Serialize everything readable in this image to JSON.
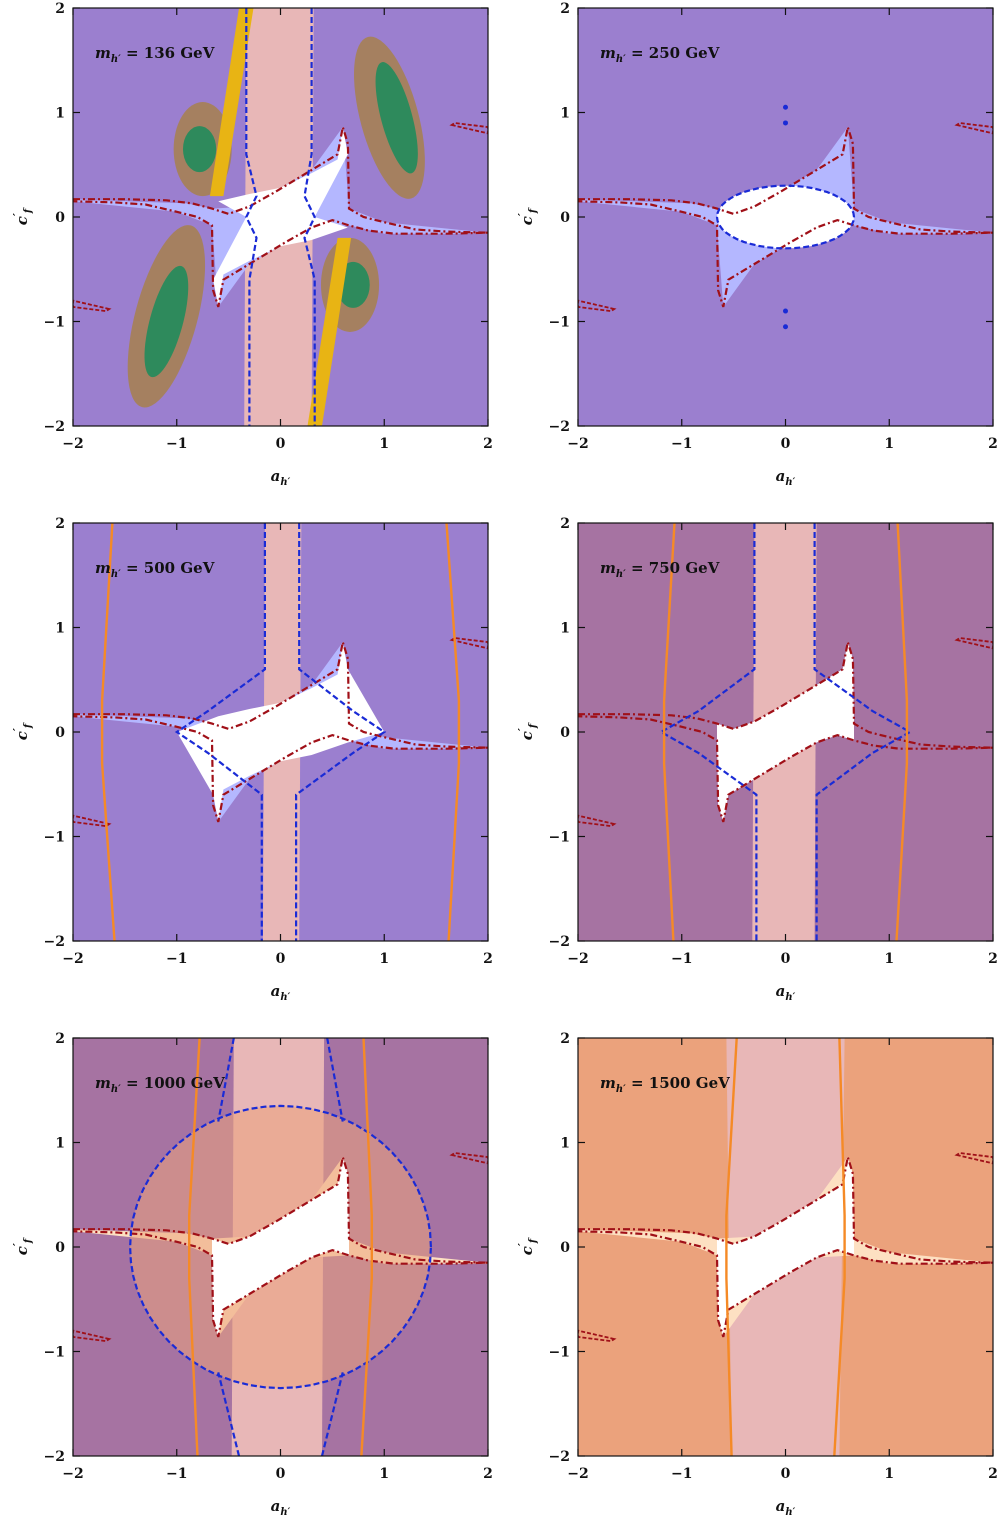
{
  "colors": {
    "violet": "#9b7fcf",
    "mauve": "#a673a2",
    "lightblue": "#b4b7ff",
    "pink": "#e8b7b7",
    "peach": "#fde0c2",
    "orange_region": "#eba27c",
    "brown": "#a58060",
    "green": "#2e8a5c",
    "yellow": "#e8b414",
    "blue_contour": "#1a2bd6",
    "red_contour": "#a01018",
    "orange_contour": "#f58a26"
  },
  "chart_data": [
    {
      "type": "contour",
      "panel": "m136",
      "mass_label": "m",
      "mass_sub": "h′",
      "mass_value": " = 136 GeV",
      "xlabel": "a",
      "xlabel_sub": "h′",
      "ylabel": "c",
      "ylabel_sub": "f",
      "ylabel_sup": "′",
      "xlim": [
        -2,
        2
      ],
      "ylim": [
        -2,
        2
      ],
      "xticks": [
        "−2",
        "−1",
        "0",
        "1",
        "2"
      ],
      "yticks": [
        "−2",
        "−1",
        "0",
        "1",
        "2"
      ],
      "background": "violet",
      "blue_band": [
        0.33,
        0.3
      ],
      "orange_lines": null
    },
    {
      "type": "contour",
      "panel": "m250",
      "mass_label": "m",
      "mass_sub": "h′",
      "mass_value": " = 250 GeV",
      "xlabel": "a",
      "xlabel_sub": "h′",
      "ylabel": "c",
      "ylabel_sub": "f",
      "ylabel_sup": "′",
      "xlim": [
        -2,
        2
      ],
      "ylim": [
        -2,
        2
      ],
      "xticks": [
        "−2",
        "−1",
        "0",
        "1",
        "2"
      ],
      "yticks": [
        "−2",
        "−1",
        "0",
        "1",
        "2"
      ],
      "background": "violet",
      "blue_band": null,
      "orange_lines": null
    },
    {
      "type": "contour",
      "panel": "m500",
      "mass_label": "m",
      "mass_sub": "h′",
      "mass_value": " = 500 GeV",
      "xlabel": "a",
      "xlabel_sub": "h′",
      "ylabel": "c",
      "ylabel_sub": "f",
      "ylabel_sup": "′",
      "xlim": [
        -2,
        2
      ],
      "ylim": [
        -2,
        2
      ],
      "xticks": [
        "−2",
        "−1",
        "0",
        "1",
        "2"
      ],
      "yticks": [
        "−2",
        "−1",
        "0",
        "1",
        "2"
      ],
      "background": "violet",
      "blue_band": [
        0.15,
        0.18
      ],
      "orange_lines": [
        1.72,
        1.6
      ]
    },
    {
      "type": "contour",
      "panel": "m750",
      "mass_label": "m",
      "mass_sub": "h′",
      "mass_value": " = 750 GeV",
      "xlabel": "a",
      "xlabel_sub": "h′",
      "ylabel": "c",
      "ylabel_sub": "f",
      "ylabel_sup": "′",
      "xlim": [
        -2,
        2
      ],
      "ylim": [
        -2,
        2
      ],
      "xticks": [
        "−2",
        "−1",
        "0",
        "1",
        "2"
      ],
      "yticks": [
        "−2",
        "−1",
        "0",
        "1",
        "2"
      ],
      "background": "mauve",
      "blue_band": [
        0.3,
        0.28
      ],
      "orange_lines": [
        1.17,
        1.08
      ]
    },
    {
      "type": "contour",
      "panel": "m1000",
      "mass_label": "m",
      "mass_sub": "h′",
      "mass_value": " = 1000 GeV",
      "xlabel": "a",
      "xlabel_sub": "h′",
      "ylabel": "c",
      "ylabel_sub": "f",
      "ylabel_sup": "′",
      "xlim": [
        -2,
        2
      ],
      "ylim": [
        -2,
        2
      ],
      "xticks": [
        "−2",
        "−1",
        "0",
        "1",
        "2"
      ],
      "yticks": [
        "−2",
        "−1",
        "0",
        "1",
        "2"
      ],
      "background": "mauve",
      "blue_band": [
        0.45,
        0.4
      ],
      "orange_lines": [
        0.88,
        0.8
      ]
    },
    {
      "type": "contour",
      "panel": "m1500",
      "mass_label": "m",
      "mass_sub": "h′",
      "mass_value": " = 1500 GeV",
      "xlabel": "a",
      "xlabel_sub": "h′",
      "ylabel": "c",
      "ylabel_sub": "f",
      "ylabel_sup": "′",
      "xlim": [
        -2,
        2
      ],
      "ylim": [
        -2,
        2
      ],
      "xticks": [
        "−2",
        "−1",
        "0",
        "1",
        "2"
      ],
      "yticks": [
        "−2",
        "−1",
        "0",
        "1",
        "2"
      ],
      "background": "orange_region",
      "blue_band": null,
      "orange_lines": [
        0.57,
        0.52
      ]
    }
  ]
}
